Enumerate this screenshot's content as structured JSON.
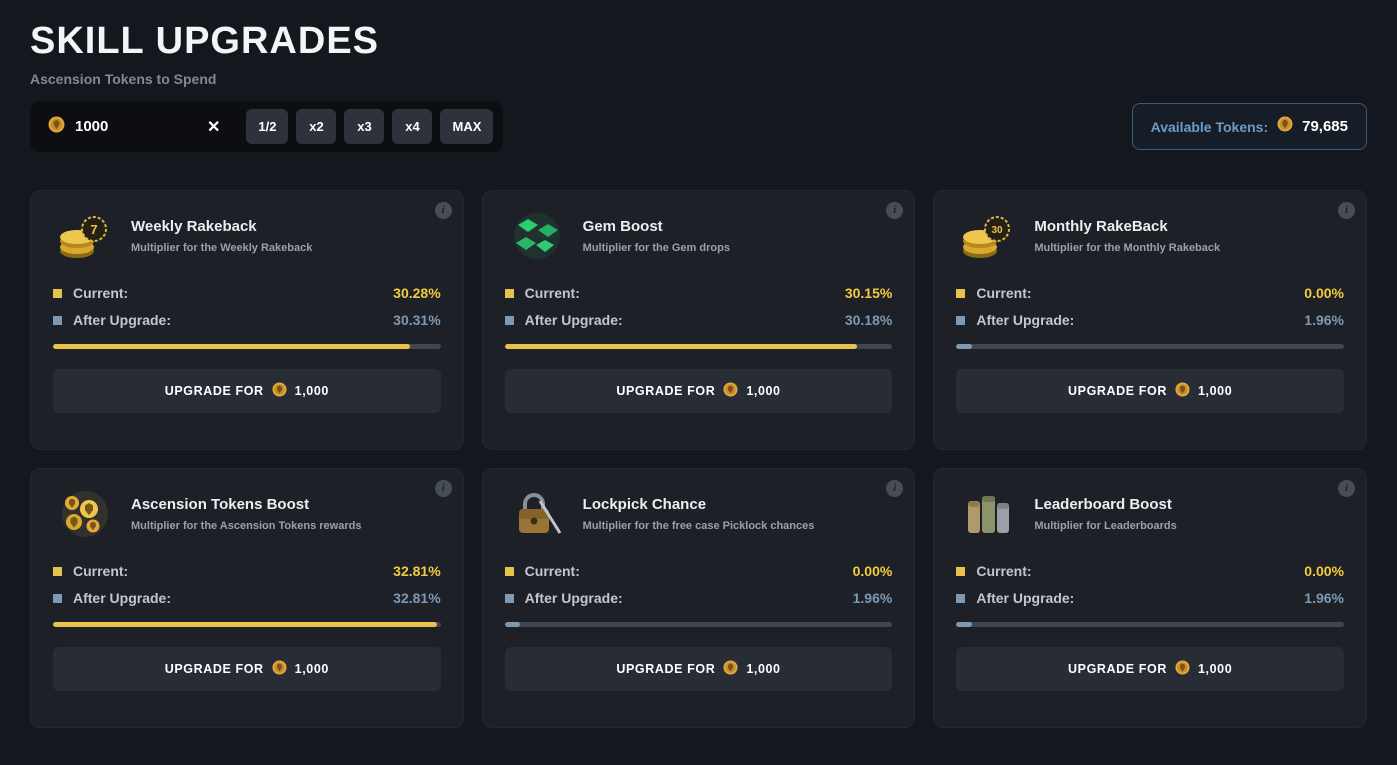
{
  "header": {
    "title": "SKILL UPGRADES",
    "subtitle": "Ascension Tokens to Spend"
  },
  "icons": {
    "clear": "✕",
    "info": "i"
  },
  "spend_input": {
    "value": "1000",
    "multiplier_buttons": [
      "1/2",
      "x2",
      "x3",
      "x4",
      "MAX"
    ]
  },
  "available_tokens": {
    "label": "Available Tokens:",
    "value": "79,685"
  },
  "colors": {
    "accent_yellow": "#e9c249",
    "accent_blue": "#7e99b4"
  },
  "cards": [
    {
      "title": "Weekly Rakeback",
      "description": "Multiplier for the Weekly Rakeback",
      "icon": "coins-badge-7-icon",
      "badge": "7",
      "current_label": "Current:",
      "current_value": "30.28%",
      "after_label": "After Upgrade:",
      "after_value": "30.31%",
      "progress_percent": 92,
      "progress_color": "#e9c249",
      "button_label": "UPGRADE FOR",
      "button_cost": "1,000"
    },
    {
      "title": "Gem Boost",
      "description": "Multiplier for the Gem drops",
      "icon": "gems-icon",
      "badge": "",
      "current_label": "Current:",
      "current_value": "30.15%",
      "after_label": "After Upgrade:",
      "after_value": "30.18%",
      "progress_percent": 91,
      "progress_color": "#e9c249",
      "button_label": "UPGRADE FOR",
      "button_cost": "1,000"
    },
    {
      "title": "Monthly RakeBack",
      "description": "Multiplier for the Monthly Rakeback",
      "icon": "coins-badge-30-icon",
      "badge": "30",
      "current_label": "Current:",
      "current_value": "0.00%",
      "after_label": "After Upgrade:",
      "after_value": "1.96%",
      "progress_percent": 4,
      "progress_color": "#7e99b4",
      "button_label": "UPGRADE FOR",
      "button_cost": "1,000"
    },
    {
      "title": "Ascension Tokens Boost",
      "description": "Multiplier for the Ascension Tokens rewards",
      "icon": "ascension-tokens-icon",
      "badge": "",
      "current_label": "Current:",
      "current_value": "32.81%",
      "after_label": "After Upgrade:",
      "after_value": "32.81%",
      "progress_percent": 99,
      "progress_color": "#e9c249",
      "button_label": "UPGRADE FOR",
      "button_cost": "1,000"
    },
    {
      "title": "Lockpick Chance",
      "description": "Multiplier for the free case Picklock chances",
      "icon": "lockpick-icon",
      "badge": "",
      "current_label": "Current:",
      "current_value": "0.00%",
      "after_label": "After Upgrade:",
      "after_value": "1.96%",
      "progress_percent": 4,
      "progress_color": "#7e99b4",
      "button_label": "UPGRADE FOR",
      "button_cost": "1,000"
    },
    {
      "title": "Leaderboard Boost",
      "description": "Multiplier for Leaderboards",
      "icon": "leaderboard-icon",
      "badge": "",
      "current_label": "Current:",
      "current_value": "0.00%",
      "after_label": "After Upgrade:",
      "after_value": "1.96%",
      "progress_percent": 4,
      "progress_color": "#7e99b4",
      "button_label": "UPGRADE FOR",
      "button_cost": "1,000"
    }
  ]
}
